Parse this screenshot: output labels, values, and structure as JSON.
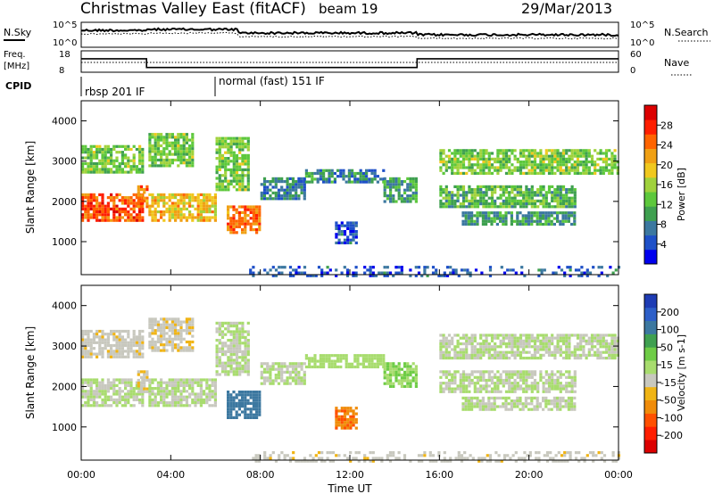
{
  "header": {
    "site": "Christmas Valley East (fitACF)",
    "beam": "beam 19",
    "date": "29/Mar/2013"
  },
  "strips": {
    "nsky_label": "N.Sky",
    "nsearch_label": "N.Search",
    "freq_label_1": "Freq.",
    "freq_label_2": "[MHz]",
    "nave_label": "Nave",
    "cpid_label": "CPID",
    "noise_ticks": [
      "10^5",
      "10^0"
    ],
    "freq_ticks": [
      "18",
      "8"
    ],
    "nave_ticks": [
      "60",
      "0"
    ],
    "cpid_segments": [
      {
        "label": "rbsp 201 IF",
        "start": "00:00",
        "end": "06:00"
      },
      {
        "label": "normal (fast) 151 IF",
        "start": "06:00",
        "end": "24:00"
      }
    ],
    "freq_series": {
      "name": "Freq.",
      "points": [
        [
          "00:00",
          14.3
        ],
        [
          "02:55",
          14.3
        ],
        [
          "02:55",
          10.2
        ],
        [
          "15:00",
          10.2
        ],
        [
          "15:00",
          14.3
        ],
        [
          "24:00",
          14.3
        ]
      ]
    }
  },
  "chart_data": [
    {
      "type": "heatmap",
      "parameter": "power",
      "xlabel": "",
      "ylabel": "Slant Range [km]",
      "xlim": [
        "00:00",
        "24:00"
      ],
      "ylim": [
        180,
        4500
      ],
      "x_ticks": [
        "00:00",
        "04:00",
        "08:00",
        "12:00",
        "16:00",
        "20:00",
        "00:00"
      ],
      "y_ticks": [
        1000,
        2000,
        3000,
        4000
      ],
      "colorbar": {
        "label": "Power [dB]",
        "tick_labels": [
          "28",
          "24",
          "20",
          "16",
          "12",
          "8",
          "4"
        ],
        "colors": [
          "#0000ee",
          "#1e50c8",
          "#3c78a0",
          "#3fa050",
          "#5dc83c",
          "#a0d23c",
          "#f0c81e",
          "#f0a014",
          "#ff6400",
          "#ff1e00",
          "#dc0000"
        ]
      },
      "echo_bands": [
        {
          "start": "00:00",
          "end": "02:45",
          "bottom_km": 1550,
          "top_km": 2200,
          "value": 26
        },
        {
          "start": "00:00",
          "end": "02:45",
          "bottom_km": 2700,
          "top_km": 3400,
          "value": 14
        },
        {
          "start": "02:30",
          "end": "03:00",
          "bottom_km": 1850,
          "top_km": 2400,
          "value": 24
        },
        {
          "start": "03:00",
          "end": "06:00",
          "bottom_km": 1550,
          "top_km": 2200,
          "value": 20
        },
        {
          "start": "03:00",
          "end": "05:00",
          "bottom_km": 2900,
          "top_km": 3700,
          "value": 14
        },
        {
          "start": "06:00",
          "end": "07:30",
          "bottom_km": 2300,
          "top_km": 3600,
          "value": 14
        },
        {
          "start": "06:30",
          "end": "08:00",
          "bottom_km": 1200,
          "top_km": 1900,
          "value": 24
        },
        {
          "start": "08:00",
          "end": "10:00",
          "bottom_km": 2100,
          "top_km": 2600,
          "value": 7
        },
        {
          "start": "10:00",
          "end": "13:30",
          "bottom_km": 2450,
          "top_km": 2800,
          "value": 8
        },
        {
          "start": "13:30",
          "end": "15:00",
          "bottom_km": 2000,
          "top_km": 2600,
          "value": 10
        },
        {
          "start": "11:20",
          "end": "12:20",
          "bottom_km": 950,
          "top_km": 1500,
          "value": 5
        },
        {
          "start": "16:00",
          "end": "24:00",
          "bottom_km": 2700,
          "top_km": 3300,
          "value": 14
        },
        {
          "start": "16:00",
          "end": "22:00",
          "bottom_km": 1900,
          "top_km": 2400,
          "value": 12
        },
        {
          "start": "17:00",
          "end": "22:00",
          "bottom_km": 1450,
          "top_km": 1750,
          "value": 10
        },
        {
          "start": "07:30",
          "end": "24:00",
          "bottom_km": 180,
          "top_km": 400,
          "value": 5
        }
      ]
    },
    {
      "type": "heatmap",
      "parameter": "velocity",
      "xlabel": "Time UT",
      "ylabel": "Slant Range [km]",
      "xlim": [
        "00:00",
        "24:00"
      ],
      "ylim": [
        180,
        4500
      ],
      "x_ticks": [
        "00:00",
        "04:00",
        "08:00",
        "12:00",
        "16:00",
        "20:00",
        "00:00"
      ],
      "y_ticks": [
        1000,
        2000,
        3000,
        4000
      ],
      "colorbar": {
        "label": "Velocity [m s-1]",
        "tick_labels": [
          "200",
          "100",
          "50",
          "15",
          "-15",
          "-50",
          "-100",
          "-200"
        ],
        "colors": [
          "#1e3cb4",
          "#2d5fc8",
          "#3c78a0",
          "#3fa050",
          "#6ecc46",
          "#a8dc6e",
          "#c8c8be",
          "#f0b414",
          "#f08c0a",
          "#ff5000",
          "#ff1e00",
          "#dc0000"
        ]
      },
      "echo_bands": [
        {
          "start": "00:00",
          "end": "02:45",
          "bottom_km": 1550,
          "top_km": 2200,
          "value": 0
        },
        {
          "start": "00:00",
          "end": "02:45",
          "bottom_km": 2700,
          "top_km": 3400,
          "value": -30
        },
        {
          "start": "02:30",
          "end": "03:00",
          "bottom_km": 1850,
          "top_km": 2400,
          "value": -40
        },
        {
          "start": "03:00",
          "end": "06:00",
          "bottom_km": 1550,
          "top_km": 2200,
          "value": 0
        },
        {
          "start": "03:00",
          "end": "05:00",
          "bottom_km": 2900,
          "top_km": 3700,
          "value": -35
        },
        {
          "start": "06:00",
          "end": "07:30",
          "bottom_km": 2300,
          "top_km": 3600,
          "value": 0
        },
        {
          "start": "06:30",
          "end": "08:00",
          "bottom_km": 1200,
          "top_km": 1900,
          "value": 150
        },
        {
          "start": "08:00",
          "end": "10:00",
          "bottom_km": 2100,
          "top_km": 2600,
          "value": 0
        },
        {
          "start": "10:00",
          "end": "13:30",
          "bottom_km": 2450,
          "top_km": 2800,
          "value": 25
        },
        {
          "start": "13:30",
          "end": "15:00",
          "bottom_km": 2000,
          "top_km": 2600,
          "value": 40
        },
        {
          "start": "11:20",
          "end": "12:20",
          "bottom_km": 950,
          "top_km": 1500,
          "value": -120
        },
        {
          "start": "16:00",
          "end": "24:00",
          "bottom_km": 2700,
          "top_km": 3300,
          "value": 0
        },
        {
          "start": "16:00",
          "end": "22:00",
          "bottom_km": 1900,
          "top_km": 2400,
          "value": 0
        },
        {
          "start": "17:00",
          "end": "22:00",
          "bottom_km": 1450,
          "top_km": 1750,
          "value": 0
        },
        {
          "start": "07:30",
          "end": "24:00",
          "bottom_km": 180,
          "top_km": 400,
          "value": -30
        }
      ]
    }
  ]
}
